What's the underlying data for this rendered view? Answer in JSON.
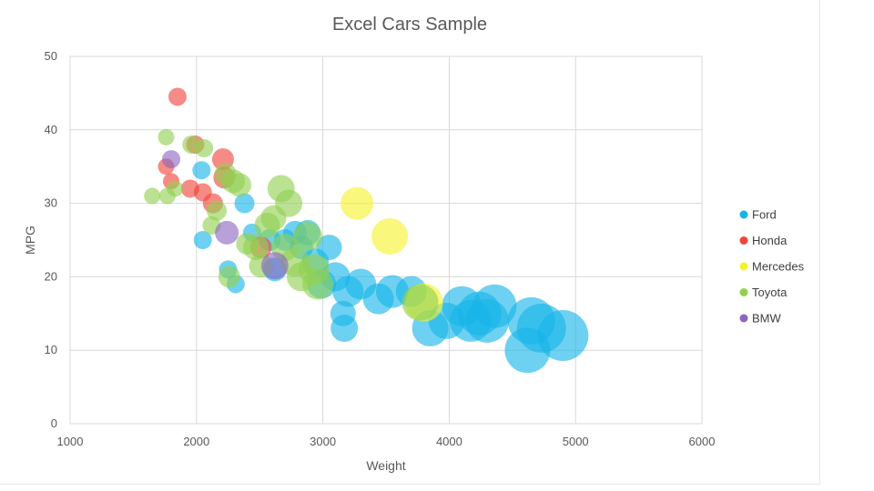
{
  "chart_data": {
    "type": "scatter",
    "subtype": "bubble",
    "title": "Excel Cars Sample",
    "xlabel": "Weight",
    "ylabel": "MPG",
    "xlim": [
      1000,
      6000
    ],
    "ylim": [
      0,
      50
    ],
    "xticks": [
      1000,
      2000,
      3000,
      4000,
      5000,
      6000
    ],
    "yticks": [
      0,
      10,
      20,
      30,
      40,
      50
    ],
    "grid": true,
    "legend_position": "right",
    "series": [
      {
        "name": "Ford",
        "color": "#16b4e8",
        "points": [
          [
            2040,
            34.5,
            10
          ],
          [
            2050,
            25,
            10
          ],
          [
            2250,
            21,
            10
          ],
          [
            2310,
            19,
            10
          ],
          [
            2380,
            30,
            11
          ],
          [
            2440,
            26,
            10
          ],
          [
            2580,
            25,
            12
          ],
          [
            2620,
            21,
            13
          ],
          [
            2700,
            25,
            12
          ],
          [
            2780,
            26,
            13
          ],
          [
            2830,
            24,
            13
          ],
          [
            2880,
            26,
            14
          ],
          [
            2940,
            22,
            15
          ],
          [
            2990,
            19,
            16
          ],
          [
            3050,
            24,
            14
          ],
          [
            3100,
            20,
            16
          ],
          [
            3160,
            15,
            14
          ],
          [
            3170,
            13,
            15
          ],
          [
            3200,
            18,
            17
          ],
          [
            3300,
            19,
            17
          ],
          [
            3440,
            17,
            17
          ],
          [
            3550,
            18,
            18
          ],
          [
            3700,
            18,
            17
          ],
          [
            3850,
            13,
            20
          ],
          [
            3980,
            14,
            20
          ],
          [
            4100,
            16,
            22
          ],
          [
            4170,
            14,
            23
          ],
          [
            4240,
            15,
            24
          ],
          [
            4300,
            14,
            24
          ],
          [
            4360,
            16,
            24
          ],
          [
            4620,
            10,
            25
          ],
          [
            4650,
            14,
            26
          ],
          [
            4730,
            13,
            27
          ],
          [
            4900,
            12,
            28
          ]
        ]
      },
      {
        "name": "Honda",
        "color": "#f0443a",
        "points": [
          [
            1760,
            35,
            9
          ],
          [
            1800,
            33,
            9
          ],
          [
            1850,
            44.5,
            10
          ],
          [
            1950,
            32,
            10
          ],
          [
            1990,
            38,
            10
          ],
          [
            2050,
            31.5,
            10
          ],
          [
            2130,
            30,
            11
          ],
          [
            2210,
            36,
            12
          ],
          [
            2220,
            33.5,
            12
          ],
          [
            2510,
            24,
            12
          ]
        ]
      },
      {
        "name": "Mercedes",
        "color": "#f5f22c",
        "points": [
          [
            3270,
            30,
            18
          ],
          [
            3530,
            25.5,
            20
          ],
          [
            3800,
            16.5,
            21
          ]
        ]
      },
      {
        "name": "Toyota",
        "color": "#92d050",
        "points": [
          [
            1650,
            31,
            9
          ],
          [
            1760,
            39,
            9
          ],
          [
            1770,
            31,
            9
          ],
          [
            1830,
            32,
            9
          ],
          [
            1960,
            38,
            10
          ],
          [
            2060,
            37.5,
            10
          ],
          [
            2120,
            27,
            10
          ],
          [
            2160,
            29,
            11
          ],
          [
            2230,
            34,
            12
          ],
          [
            2260,
            20,
            12
          ],
          [
            2290,
            33,
            13
          ],
          [
            2340,
            32.5,
            13
          ],
          [
            2400,
            24.5,
            12
          ],
          [
            2470,
            24,
            14
          ],
          [
            2510,
            21.5,
            13
          ],
          [
            2560,
            27,
            14
          ],
          [
            2610,
            28,
            14
          ],
          [
            2670,
            32,
            15
          ],
          [
            2700,
            24,
            15
          ],
          [
            2730,
            30,
            15
          ],
          [
            2780,
            22,
            16
          ],
          [
            2830,
            20,
            16
          ],
          [
            2880,
            25.5,
            16
          ],
          [
            2930,
            21,
            17
          ],
          [
            2960,
            19,
            17
          ],
          [
            3770,
            16.5,
            20
          ]
        ]
      },
      {
        "name": "BMW",
        "color": "#8d65c0",
        "points": [
          [
            1800,
            36,
            10
          ],
          [
            2240,
            26,
            13
          ],
          [
            2620,
            21.5,
            15
          ]
        ]
      }
    ]
  }
}
